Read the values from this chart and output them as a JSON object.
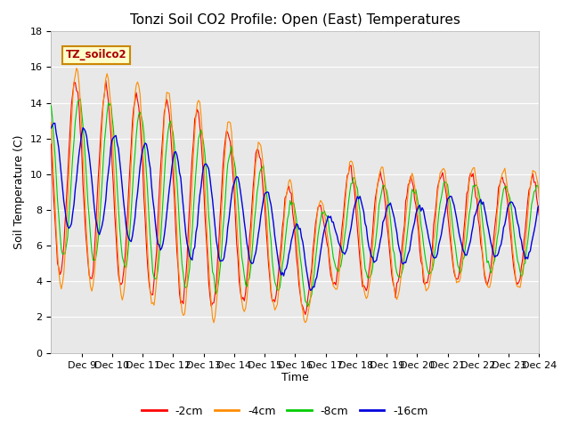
{
  "title": "Tonzi Soil CO2 Profile: Open (East) Temperatures",
  "xlabel": "Time",
  "ylabel": "Soil Temperature (C)",
  "ylim": [
    0,
    18
  ],
  "yticks": [
    0,
    2,
    4,
    6,
    8,
    10,
    12,
    14,
    16,
    18
  ],
  "legend_label": "TZ_soilco2",
  "series_labels": [
    "-2cm",
    "-4cm",
    "-8cm",
    "-16cm"
  ],
  "series_colors": [
    "#ff0000",
    "#ff8c00",
    "#00cc00",
    "#0000dd"
  ],
  "title_fontsize": 11,
  "axis_fontsize": 9,
  "tick_fontsize": 8,
  "x_tick_labels": [
    "Dec 9",
    "Dec 10",
    "Dec 11",
    "Dec 12",
    "Dec 13",
    "Dec 14",
    "Dec 15",
    "Dec 16",
    "Dec 17",
    "Dec 18",
    "Dec 19",
    "Dec 20",
    "Dec 21",
    "Dec 22",
    "Dec 23",
    "Dec 24"
  ],
  "fig_facecolor": "#ffffff",
  "ax_facecolor": "#e8e8e8",
  "grid_color": "#ffffff"
}
